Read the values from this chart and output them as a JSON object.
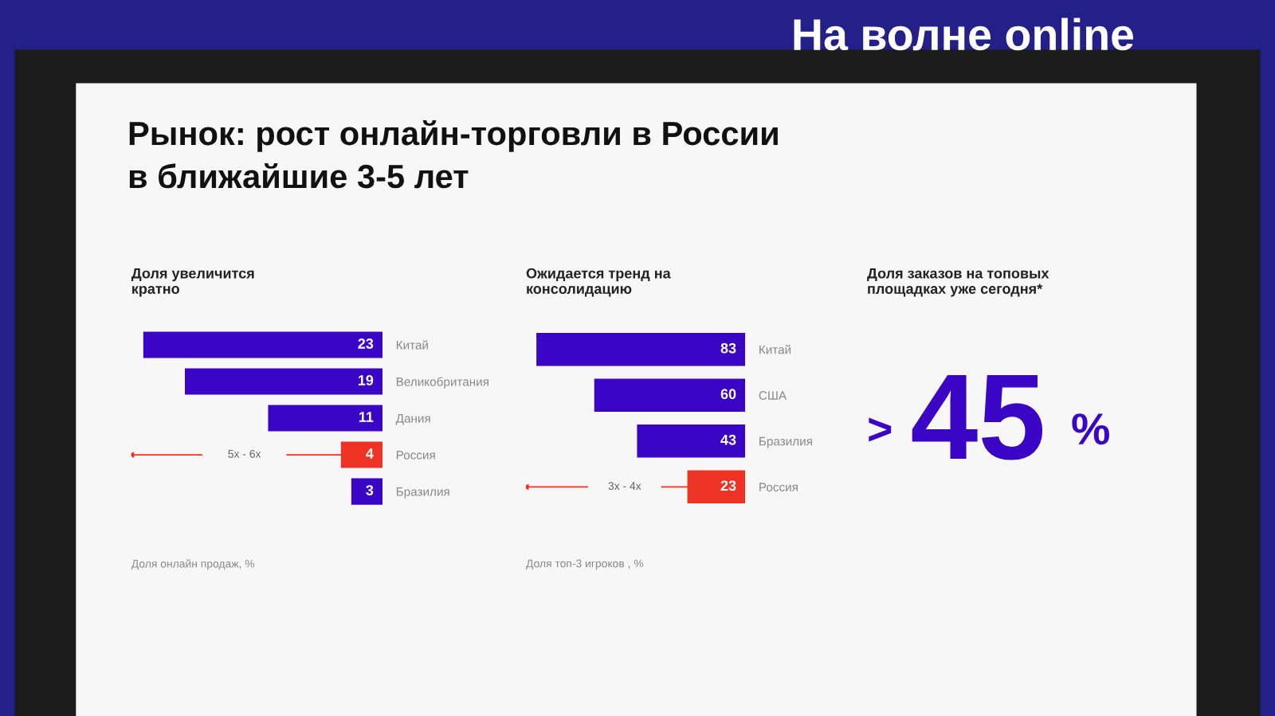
{
  "chart_data": [
    {
      "type": "other",
      "title": "Рынок: рост онлайн-торговли в России\nв ближайшие 3-5 лет",
      "annotations": [
        "На волне online"
      ]
    },
    {
      "type": "bar",
      "orientation": "horizontal",
      "title": "Доля увеличится\nкратно",
      "xlabel": "Доля онлайн продаж, %",
      "categories": [
        "Китай",
        "Великобритания",
        "Дания",
        "Россия",
        "Бразилия"
      ],
      "values": [
        23,
        19,
        11,
        4,
        3
      ],
      "colors": [
        "#3a05c4",
        "#3a05c4",
        "#3a05c4",
        "#ee3324",
        "#3a05c4"
      ],
      "data_labels": true,
      "grid": false,
      "legend": false,
      "annotations": [
        "5x - 6x"
      ]
    },
    {
      "type": "bar",
      "orientation": "horizontal",
      "title": "Ожидается тренд на\nконсолидацию",
      "xlabel": "Доля топ-3 игроков , %",
      "categories": [
        "Китай",
        "США",
        "Бразилия",
        "Россия"
      ],
      "values": [
        83,
        60,
        43,
        23
      ],
      "colors": [
        "#3a05c4",
        "#3a05c4",
        "#3a05c4",
        "#ee3324"
      ],
      "data_labels": true,
      "grid": false,
      "legend": false,
      "annotations": [
        "3x - 4x"
      ]
    },
    {
      "type": "other",
      "title": "Доля заказов на топовых\nплощадках уже сегодня*",
      "annotations": [
        ">",
        "45",
        "%"
      ]
    }
  ]
}
